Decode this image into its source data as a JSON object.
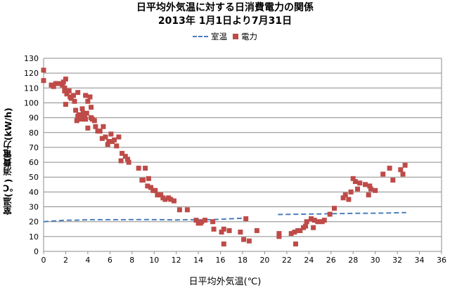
{
  "chart_data": {
    "type": "scatter",
    "title": "日平均外気温に対する日消費電力の関係",
    "subtitle": "2013年 1月1日より7月31日",
    "xlabel": "日平均外気温(℃)",
    "ylabel": "室温(℃)  消費電力(kW/h)",
    "xlim": [
      0,
      36
    ],
    "ylim": [
      0,
      130
    ],
    "xticks": [
      0,
      2,
      4,
      6,
      8,
      10,
      12,
      14,
      16,
      18,
      20,
      22,
      24,
      26,
      28,
      30,
      32,
      34,
      36
    ],
    "yticks": [
      0,
      10,
      20,
      30,
      40,
      50,
      60,
      70,
      80,
      90,
      100,
      110,
      120,
      130
    ],
    "grid": true,
    "legend_position": "top-center",
    "colors": {
      "室温": "#4a7ebb",
      "電力": "#be4b48"
    },
    "series": [
      {
        "name": "室温",
        "style": "dashed-line",
        "points": [
          [
            0.0,
            20.0
          ],
          [
            1.0,
            20.5
          ],
          [
            2.0,
            21.0
          ],
          [
            3.0,
            21.0
          ],
          [
            4.0,
            21.3
          ],
          [
            5.0,
            21.3
          ],
          [
            6.0,
            21.3
          ],
          [
            7.0,
            21.3
          ],
          [
            8.0,
            21.4
          ],
          [
            9.0,
            21.4
          ],
          [
            10.0,
            21.3
          ],
          [
            11.0,
            21.3
          ],
          [
            12.0,
            21.2
          ],
          [
            13.0,
            21.3
          ],
          [
            14.0,
            21.2
          ],
          [
            15.0,
            21.3
          ],
          [
            16.0,
            21.6
          ],
          [
            17.0,
            22.0
          ],
          [
            18.0,
            22.3
          ],
          [
            18.5,
            22.5
          ],
          [
            21.2,
            24.8
          ],
          [
            22.0,
            24.9
          ],
          [
            23.0,
            25.0
          ],
          [
            24.0,
            25.1
          ],
          [
            25.0,
            25.2
          ],
          [
            26.0,
            25.4
          ],
          [
            27.0,
            25.5
          ],
          [
            28.0,
            25.6
          ],
          [
            29.0,
            25.6
          ],
          [
            30.0,
            25.7
          ],
          [
            31.0,
            25.8
          ],
          [
            32.0,
            26.0
          ],
          [
            32.8,
            26.1
          ]
        ]
      },
      {
        "name": "電力",
        "style": "markers",
        "points": [
          [
            0.0,
            122
          ],
          [
            0.0,
            115
          ],
          [
            0.7,
            112
          ],
          [
            0.9,
            111
          ],
          [
            1.1,
            113
          ],
          [
            1.5,
            113
          ],
          [
            1.7,
            112
          ],
          [
            1.8,
            114
          ],
          [
            1.9,
            110
          ],
          [
            2.0,
            116
          ],
          [
            2.1,
            106
          ],
          [
            1.9,
            108
          ],
          [
            2.0,
            99
          ],
          [
            2.3,
            108
          ],
          [
            2.4,
            104
          ],
          [
            2.5,
            103
          ],
          [
            2.7,
            105
          ],
          [
            3.1,
            107
          ],
          [
            2.8,
            101
          ],
          [
            2.9,
            95
          ],
          [
            3.0,
            88
          ],
          [
            3.1,
            91
          ],
          [
            3.2,
            92
          ],
          [
            3.3,
            91
          ],
          [
            3.4,
            89
          ],
          [
            3.5,
            96
          ],
          [
            3.6,
            93
          ],
          [
            3.7,
            92
          ],
          [
            3.8,
            89
          ],
          [
            3.9,
            93
          ],
          [
            3.8,
            105
          ],
          [
            4.0,
            101
          ],
          [
            4.2,
            104
          ],
          [
            4.3,
            97
          ],
          [
            4.4,
            89
          ],
          [
            4.6,
            88
          ],
          [
            4.0,
            83
          ],
          [
            4.3,
            90
          ],
          [
            4.7,
            84
          ],
          [
            4.9,
            81
          ],
          [
            5.1,
            81
          ],
          [
            5.3,
            76
          ],
          [
            5.4,
            84
          ],
          [
            5.6,
            77
          ],
          [
            5.8,
            72
          ],
          [
            5.9,
            74
          ],
          [
            6.1,
            79
          ],
          [
            6.2,
            74
          ],
          [
            6.4,
            75
          ],
          [
            6.6,
            71
          ],
          [
            6.8,
            77
          ],
          [
            7.0,
            61
          ],
          [
            7.1,
            66
          ],
          [
            7.4,
            64
          ],
          [
            7.6,
            62
          ],
          [
            7.7,
            60
          ],
          [
            8.6,
            56
          ],
          [
            9.2,
            56
          ],
          [
            8.9,
            48
          ],
          [
            9.0,
            48
          ],
          [
            9.4,
            44
          ],
          [
            9.5,
            49
          ],
          [
            9.7,
            43
          ],
          [
            9.9,
            41
          ],
          [
            10.1,
            41
          ],
          [
            10.3,
            38
          ],
          [
            10.6,
            38
          ],
          [
            10.8,
            36
          ],
          [
            11.0,
            35
          ],
          [
            11.3,
            36
          ],
          [
            11.5,
            35
          ],
          [
            11.8,
            34
          ],
          [
            12.3,
            28
          ],
          [
            13.0,
            28
          ],
          [
            13.8,
            21
          ],
          [
            14.0,
            19
          ],
          [
            14.2,
            19
          ],
          [
            14.3,
            20
          ],
          [
            14.6,
            21
          ],
          [
            15.3,
            20
          ],
          [
            15.4,
            15
          ],
          [
            16.1,
            13
          ],
          [
            16.3,
            15
          ],
          [
            16.3,
            5
          ],
          [
            16.8,
            14
          ],
          [
            17.8,
            13
          ],
          [
            18.1,
            8
          ],
          [
            18.6,
            7
          ],
          [
            18.3,
            22
          ],
          [
            19.3,
            14
          ],
          [
            21.3,
            10
          ],
          [
            21.3,
            12
          ],
          [
            22.4,
            12
          ],
          [
            22.7,
            13
          ],
          [
            22.8,
            5
          ],
          [
            23.0,
            14
          ],
          [
            23.2,
            14
          ],
          [
            23.5,
            16
          ],
          [
            23.7,
            17
          ],
          [
            23.8,
            20
          ],
          [
            24.2,
            22
          ],
          [
            24.4,
            16
          ],
          [
            24.5,
            21
          ],
          [
            24.8,
            20
          ],
          [
            25.2,
            20
          ],
          [
            25.4,
            21
          ],
          [
            25.9,
            25
          ],
          [
            26.3,
            29
          ],
          [
            27.1,
            36
          ],
          [
            27.3,
            38
          ],
          [
            27.6,
            35
          ],
          [
            27.8,
            40
          ],
          [
            28.0,
            49
          ],
          [
            28.2,
            47
          ],
          [
            28.4,
            42
          ],
          [
            28.6,
            46
          ],
          [
            29.1,
            45
          ],
          [
            29.4,
            38
          ],
          [
            29.5,
            44
          ],
          [
            29.6,
            42
          ],
          [
            30.0,
            41
          ],
          [
            30.7,
            52
          ],
          [
            31.3,
            56
          ],
          [
            31.6,
            48
          ],
          [
            32.3,
            55
          ],
          [
            32.5,
            52
          ],
          [
            32.7,
            58
          ]
        ]
      }
    ]
  }
}
